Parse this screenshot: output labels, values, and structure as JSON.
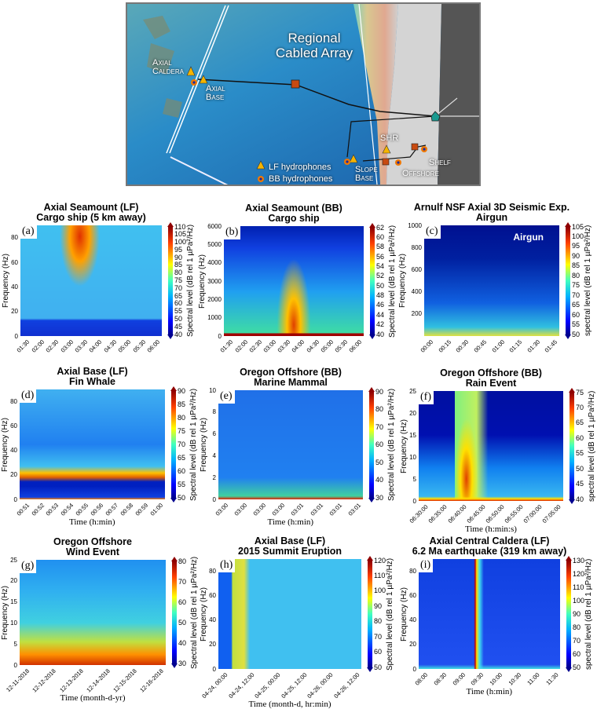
{
  "map": {
    "title_line1": "Regional",
    "title_line2": "Cabled Array",
    "sites": {
      "axial_caldera_1": "Axial",
      "axial_caldera_2": "Caldera",
      "axial_base_1": "Axial",
      "axial_base_2": "Base",
      "shr": "SHR",
      "slope_base_1": "Slope",
      "slope_base_2": "Base",
      "offshore": "Offshore",
      "shelf": "Shelf"
    },
    "legend": {
      "lf": "LF hydrophones",
      "bb": "BB hydrophones"
    },
    "colors": {
      "lf_marker": "#f5b400",
      "bb_marker": "#f07800",
      "node": "#c84a10"
    }
  },
  "chart_data": [
    {
      "type": "heatmap",
      "panel_label": "(a)",
      "title": [
        "Axial Seamount (LF)",
        "Cargo ship (5 km away)"
      ],
      "ylabel": "Frequency (Hz)",
      "xlabel": "",
      "ylim": [
        0,
        90
      ],
      "y_ticks": [
        0,
        20,
        40,
        60,
        80
      ],
      "x_ticks": [
        "01:30",
        "02:00",
        "02:30",
        "03:00",
        "03:30",
        "04:00",
        "04:30",
        "05:00",
        "05:30",
        "06:00"
      ],
      "colorbar": {
        "label": "Spectral level (dB rel 1 µPa²/Hz)",
        "range": [
          40,
          110
        ],
        "ticks": [
          40,
          45,
          50,
          55,
          60,
          65,
          70,
          75,
          80,
          85,
          90,
          95,
          100,
          105,
          110
        ]
      }
    },
    {
      "type": "heatmap",
      "panel_label": "(b)",
      "title": [
        "Axial Seamount (BB)",
        "Cargo ship"
      ],
      "ylabel": "Frequency (Hz)",
      "xlabel": "",
      "ylim": [
        0,
        6000
      ],
      "y_ticks": [
        0,
        1000,
        2000,
        3000,
        4000,
        5000,
        6000
      ],
      "x_ticks": [
        "01:30",
        "02:00",
        "02:30",
        "03:00",
        "03:30",
        "04:00",
        "04:30",
        "05:00",
        "05:30",
        "06:00"
      ],
      "colorbar": {
        "label": "Spectral level (dB rel 1 µPa²/Hz)",
        "range": [
          40,
          62
        ],
        "ticks": [
          40,
          42,
          44,
          46,
          48,
          50,
          52,
          54,
          56,
          58,
          60,
          62
        ]
      }
    },
    {
      "type": "heatmap",
      "panel_label": "(c)",
      "title": [
        "Arnulf NSF Axial 3D Seismic Exp.",
        "Airgun"
      ],
      "annotation": "Airgun",
      "ylabel": "Frequency (Hz)",
      "xlabel": "",
      "ylim": [
        0,
        1000
      ],
      "y_ticks": [
        200,
        400,
        600,
        800,
        1000
      ],
      "x_ticks": [
        "00:00",
        "00:15",
        "00:30",
        "00:45",
        "01:00",
        "01:15",
        "01:30",
        "01:45"
      ],
      "colorbar": {
        "label": "spectral level (dB rel 1 µPa²/Hz)",
        "range": [
          50,
          105
        ],
        "ticks": [
          50,
          55,
          60,
          65,
          70,
          75,
          80,
          85,
          90,
          95,
          100,
          105
        ]
      }
    },
    {
      "type": "heatmap",
      "panel_label": "(d)",
      "title": [
        "Axial Base (LF)",
        "Fin Whale"
      ],
      "ylabel": "Frequency (Hz)",
      "xlabel": "Time (h:min)",
      "ylim": [
        0,
        90
      ],
      "y_ticks": [
        0,
        20,
        40,
        60,
        80
      ],
      "x_ticks": [
        "00:51",
        "00:52",
        "00:53",
        "00:54",
        "00:55",
        "00:56",
        "00:57",
        "00:58",
        "00:59",
        "01:00"
      ],
      "colorbar": {
        "label": "Spectral level (dB rel 1 µPa²/Hz)",
        "range": [
          50,
          90
        ],
        "ticks": [
          50,
          55,
          60,
          65,
          70,
          75,
          80,
          85,
          90
        ]
      }
    },
    {
      "type": "heatmap",
      "panel_label": "(e)",
      "title": [
        "Oregon Offshore (BB)",
        "Marine Mammal"
      ],
      "ylabel": "Frequency (Hz)",
      "xlabel": "Time (h:min)",
      "ylim": [
        0,
        10
      ],
      "y_ticks": [
        0,
        2,
        4,
        6,
        8,
        10
      ],
      "x_ticks": [
        "03:00",
        "03:00",
        "03:00",
        "03:00",
        "03:01",
        "03:01",
        "03:01",
        "03:01"
      ],
      "colorbar": {
        "label": "Spectral level (dB rel 1 µPa²/Hz)",
        "range": [
          30,
          90
        ],
        "ticks": [
          30,
          40,
          50,
          60,
          70,
          80,
          90
        ]
      }
    },
    {
      "type": "heatmap",
      "panel_label": "(f)",
      "title": [
        "Oregon Offshore (BB)",
        "Rain Event"
      ],
      "ylabel": "Frequency (Hz)",
      "xlabel": "Time (h:min:s)",
      "ylim": [
        0,
        25
      ],
      "y_ticks": [
        0,
        5,
        10,
        15,
        20,
        25
      ],
      "x_ticks": [
        "06:30:00",
        "06:35:00",
        "06:40:00",
        "06:45:00",
        "06:50:00",
        "06:55:00",
        "07:00:00",
        "07:05:00"
      ],
      "colorbar": {
        "label": "spectral level (dB rel 1 µPa²/Hz)",
        "range": [
          40,
          75
        ],
        "ticks": [
          40,
          45,
          50,
          55,
          60,
          65,
          70,
          75
        ]
      }
    },
    {
      "type": "heatmap",
      "panel_label": "(g)",
      "title": [
        "Oregon Offshore",
        "Wind Event"
      ],
      "ylabel": "Frequency (Hz)",
      "xlabel": "Time (month-d-yr)",
      "ylim": [
        0,
        25
      ],
      "y_ticks": [
        0,
        5,
        10,
        15,
        20,
        25
      ],
      "x_ticks": [
        "12-11-2018",
        "12-12-2018",
        "12-13-2018",
        "12-14-2018",
        "12-15-2018",
        "12-16-2018"
      ],
      "colorbar": {
        "label": "Spectral level (dB rel 1 µPa²/Hz)",
        "range": [
          30,
          80
        ],
        "ticks": [
          30,
          40,
          50,
          60,
          70,
          80
        ]
      }
    },
    {
      "type": "heatmap",
      "panel_label": "(h)",
      "title": [
        "Axial Base (LF)",
        "2015 Summit Eruption"
      ],
      "ylabel": "Frequency (Hz)",
      "xlabel": "Time (month-d, hr:min)",
      "ylim": [
        0,
        90
      ],
      "y_ticks": [
        0,
        20,
        40,
        60,
        80
      ],
      "x_ticks": [
        "04-24, 00:00",
        "04-24, 12:00",
        "04-25, 00:00",
        "04-25, 12:00",
        "04-26, 00:00",
        "04-26, 12:00"
      ],
      "colorbar": {
        "label": "Spectral level (dB rel 1 µPa²/Hz)",
        "range": [
          50,
          120
        ],
        "ticks": [
          50,
          60,
          70,
          80,
          90,
          100,
          110,
          120
        ]
      }
    },
    {
      "type": "heatmap",
      "panel_label": "(i)",
      "title": [
        "Axial Central Caldera (LF)",
        "6.2 Ma earthquake (319 km away)"
      ],
      "ylabel": "Frequency (Hz)",
      "xlabel": "Time (h:min)",
      "ylim": [
        0,
        90
      ],
      "y_ticks": [
        0,
        20,
        40,
        60,
        80
      ],
      "x_ticks": [
        "08:00",
        "08:30",
        "09:00",
        "09:30",
        "10:00",
        "10:30",
        "11:00",
        "11:30"
      ],
      "colorbar": {
        "label": "spectral level (dB rel 1 µPa²/Hz)",
        "range": [
          50,
          130
        ],
        "ticks": [
          50,
          60,
          70,
          80,
          90,
          100,
          110,
          120,
          130
        ]
      }
    }
  ]
}
